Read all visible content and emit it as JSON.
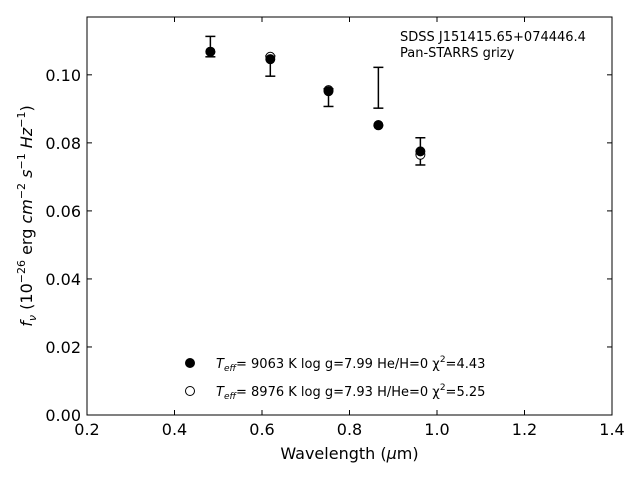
{
  "chart_data": {
    "type": "scatter",
    "xlabel": "Wavelength (μm)",
    "ylabel": "f_ν (10^-26 erg cm^-2 s^-1 Hz^-1)",
    "xlim": [
      0.2,
      1.4
    ],
    "ylim": [
      0.0,
      0.117
    ],
    "xticks": [
      0.2,
      0.4,
      0.6,
      0.8,
      1.0,
      1.2,
      1.4
    ],
    "xtick_labels": [
      "0.2",
      "0.4",
      "0.6",
      "0.8",
      "1.0",
      "1.2",
      "1.4"
    ],
    "yticks": [
      0.0,
      0.02,
      0.04,
      0.06,
      0.08,
      0.1
    ],
    "ytick_labels": [
      "0.00",
      "0.02",
      "0.04",
      "0.06",
      "0.08",
      "0.10"
    ],
    "grid": false,
    "annotation": {
      "line1": "SDSS J151415.65+074446.4",
      "line2": "Pan-STARRS grizy",
      "position": "top-right"
    },
    "observed": {
      "x": [
        0.482,
        0.619,
        0.752,
        0.866,
        0.962
      ],
      "y": [
        0.1083,
        0.1026,
        0.0933,
        0.0962,
        0.0775
      ],
      "yerr": [
        0.003,
        0.003,
        0.0026,
        0.006,
        0.004
      ]
    },
    "series": [
      {
        "marker": "filled-circle",
        "x": [
          0.482,
          0.619,
          0.752,
          0.866,
          0.962
        ],
        "y": [
          0.1068,
          0.1046,
          0.0952,
          0.0852,
          0.0775
        ]
      },
      {
        "marker": "open-circle",
        "x": [
          0.482,
          0.619,
          0.752,
          0.866,
          0.962
        ],
        "y": [
          0.1068,
          0.1053,
          0.0955,
          0.0852,
          0.0765
        ]
      }
    ],
    "legend": {
      "placement": "bottom-center",
      "entries": [
        {
          "marker": "filled-circle",
          "teff_label": "T",
          "teff_sub": "eff",
          "text": "=  9063 K  log g=7.99  He/H=0  χ",
          "chi_sup": "2",
          "chi_val": "=4.43"
        },
        {
          "marker": "open-circle",
          "teff_label": "T",
          "teff_sub": "eff",
          "text": "=  8976 K  log g=7.93  H/He=0  χ",
          "chi_sup": "2",
          "chi_val": "=5.25"
        }
      ]
    }
  }
}
